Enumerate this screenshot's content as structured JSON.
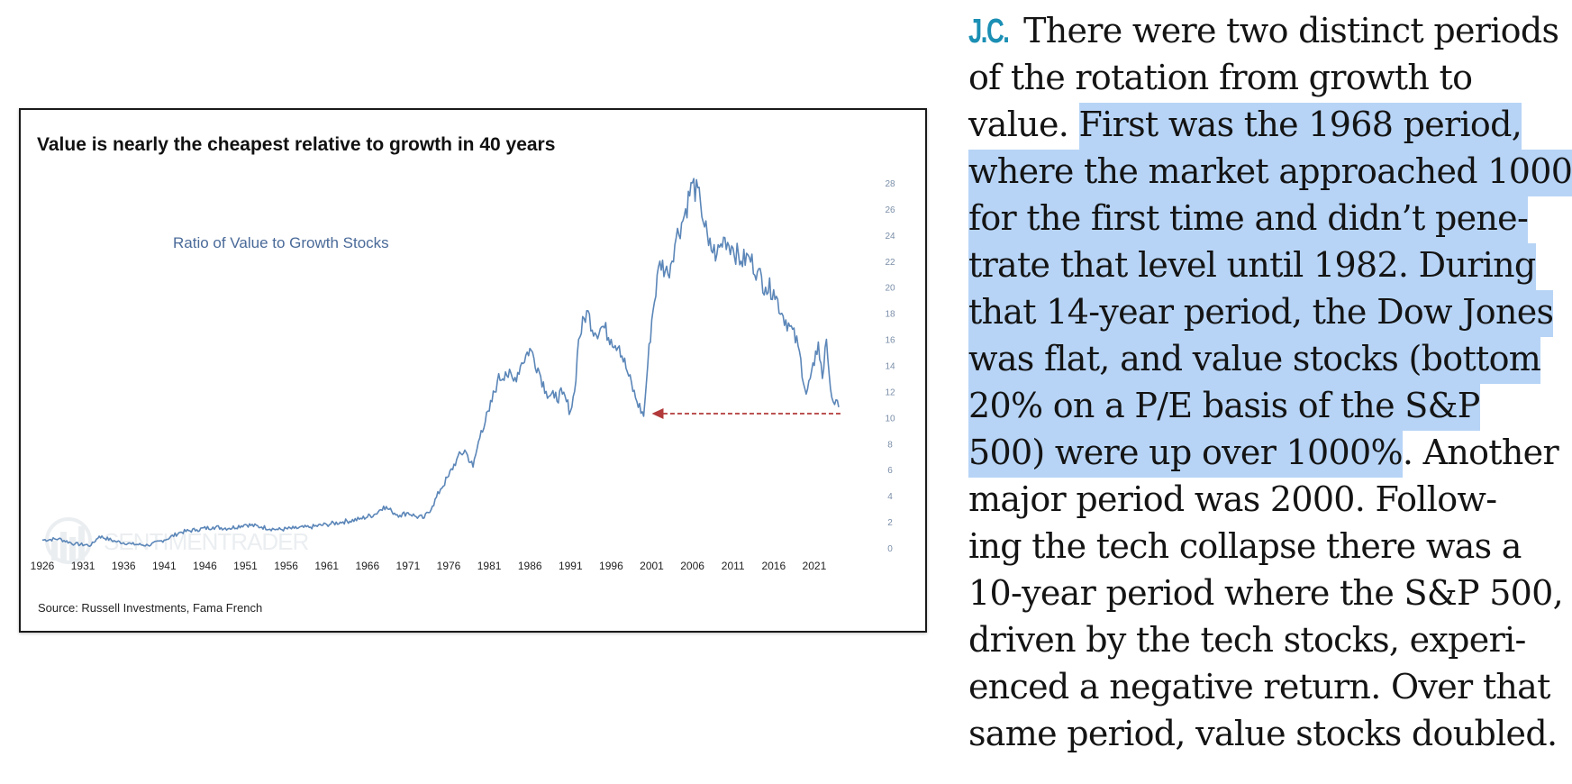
{
  "chart_data": {
    "type": "line",
    "title": "Value is nearly the cheapest relative to growth in 40 years",
    "subtitle": "Ratio of Value to Growth Stocks",
    "source": "Source: Russell Investments, Fama French",
    "watermark": "SENTIMENTRADER",
    "y_axis_side": "right",
    "ylim": [
      0,
      29
    ],
    "yticks": [
      "28",
      "26",
      "24",
      "22",
      "20",
      "18",
      "16",
      "14",
      "12",
      "10",
      "8",
      "6",
      "4",
      "2",
      "0"
    ],
    "xlim": [
      1926,
      2024
    ],
    "xticks": [
      "1926",
      "1931",
      "1936",
      "1941",
      "1946",
      "1951",
      "1956",
      "1961",
      "1966",
      "1971",
      "1976",
      "1981",
      "1986",
      "1991",
      "1996",
      "2001",
      "2006",
      "2011",
      "2016",
      "2021"
    ],
    "series": [
      {
        "name": "Ratio of Value to Growth Stocks",
        "color": "#5b86b8",
        "x": [
          1926,
          1928,
          1930,
          1932,
          1933,
          1935,
          1937,
          1939,
          1941,
          1943,
          1945,
          1947,
          1949,
          1951,
          1953,
          1955,
          1957,
          1959,
          1961,
          1963,
          1965,
          1967,
          1968,
          1969,
          1970,
          1971,
          1972,
          1973,
          1974,
          1975,
          1976,
          1977,
          1978,
          1979,
          1980,
          1981,
          1982,
          1983,
          1984,
          1985,
          1986,
          1987,
          1988,
          1989,
          1990,
          1991,
          1991.5,
          1992,
          1993,
          1994,
          1995,
          1996,
          1997,
          1998,
          1999,
          2000,
          2000.5,
          2001,
          2002,
          2003,
          2004,
          2005,
          2006,
          2007,
          2008,
          2009,
          2010,
          2011,
          2012,
          2013,
          2014,
          2015,
          2016,
          2017,
          2018,
          2019,
          2020,
          2021,
          2021.5,
          2022,
          2022.5,
          2023,
          2023.5,
          2024
        ],
        "values": [
          0.6,
          0.7,
          0.3,
          0.2,
          0.9,
          0.5,
          0.3,
          0.2,
          0.6,
          1.2,
          1.4,
          1.6,
          1.5,
          1.8,
          1.6,
          1.4,
          1.5,
          1.6,
          1.8,
          2.0,
          2.2,
          2.6,
          3.2,
          2.8,
          2.5,
          2.7,
          2.4,
          2.3,
          3.2,
          4.5,
          5.5,
          6.8,
          7.5,
          6.2,
          9.0,
          10.5,
          12.8,
          13.5,
          12.8,
          14.2,
          15.3,
          13.8,
          12.0,
          11.5,
          11.8,
          10.5,
          12.0,
          16.0,
          18.2,
          16.5,
          17.0,
          16.0,
          15.5,
          13.5,
          11.5,
          10.1,
          14.0,
          17.5,
          22.0,
          21.0,
          23.8,
          25.5,
          28.0,
          26.5,
          23.2,
          22.5,
          23.8,
          23.0,
          22.0,
          22.3,
          21.2,
          20.0,
          19.8,
          18.0,
          17.0,
          15.5,
          11.8,
          14.0,
          15.8,
          13.0,
          16.0,
          12.2,
          11.0,
          10.8
        ]
      }
    ],
    "annotation": {
      "type": "dashed-arrow",
      "color": "#b23a3a",
      "from_x": 2024,
      "to_x": 2001,
      "y": 10.3
    }
  },
  "article": {
    "initials": "J.C.",
    "lines": [
      {
        "segments": [
          {
            "text": " There were two distinct periods",
            "hl": false
          }
        ]
      },
      {
        "segments": [
          {
            "text": "of the rotation from growth to",
            "hl": false
          }
        ]
      },
      {
        "segments": [
          {
            "text": "value. ",
            "hl": false
          },
          {
            "text": "First was the 1968 period,",
            "hl": true
          }
        ]
      },
      {
        "segments": [
          {
            "text": "where the market approached 1000",
            "hl": true
          }
        ]
      },
      {
        "segments": [
          {
            "text": "for the first time and didn’t pene-",
            "hl": true
          }
        ]
      },
      {
        "segments": [
          {
            "text": "trate that level until 1982. During",
            "hl": true
          }
        ]
      },
      {
        "segments": [
          {
            "text": "that 14-year period, the Dow Jones",
            "hl": true
          }
        ]
      },
      {
        "segments": [
          {
            "text": "was flat, and value stocks (bottom",
            "hl": true
          }
        ]
      },
      {
        "segments": [
          {
            "text": "20% on a P/E basis of the S&P",
            "hl": true
          }
        ]
      },
      {
        "segments": [
          {
            "text": "500) were up over 1000%",
            "hl": true
          },
          {
            "text": ". Another",
            "hl": false
          }
        ]
      },
      {
        "segments": [
          {
            "text": "major period was 2000. Follow-",
            "hl": false
          }
        ]
      },
      {
        "segments": [
          {
            "text": "ing the tech collapse there was a",
            "hl": false
          }
        ]
      },
      {
        "segments": [
          {
            "text": "10-year period where the S&P 500,",
            "hl": false
          }
        ]
      },
      {
        "segments": [
          {
            "text": "driven by the tech stocks, experi-",
            "hl": false
          }
        ]
      },
      {
        "segments": [
          {
            "text": "enced a negative return. Over that",
            "hl": false
          }
        ]
      },
      {
        "segments": [
          {
            "text": "same period, value stocks doubled.",
            "hl": false
          }
        ]
      }
    ]
  }
}
